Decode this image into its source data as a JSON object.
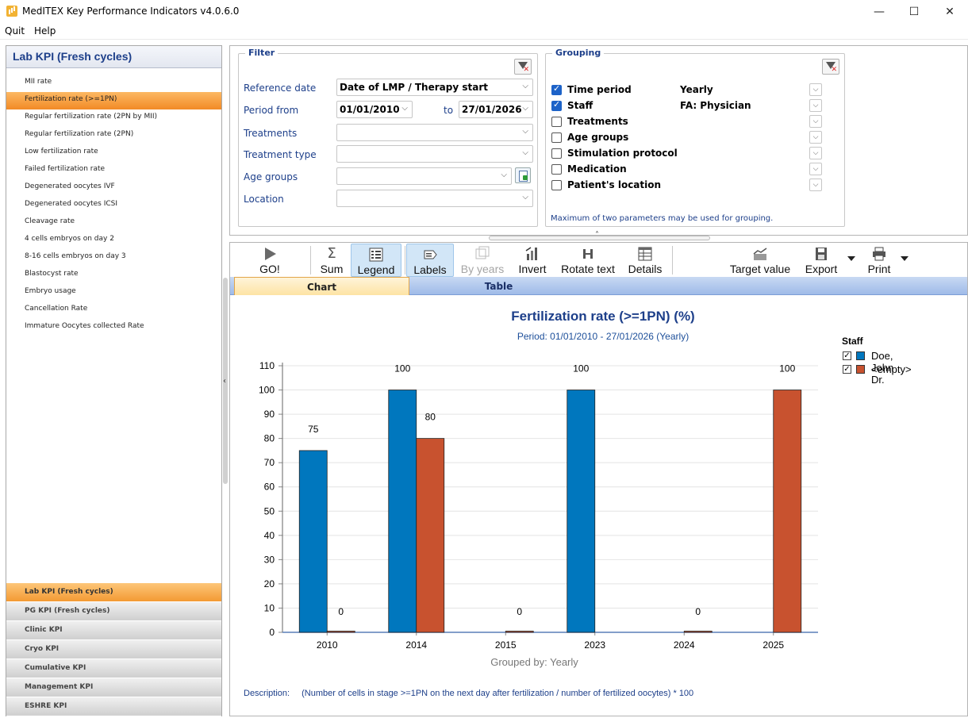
{
  "window": {
    "title": "MedITEX Key Performance Indicators v4.0.6.0",
    "minimize": "—",
    "maximize": "☐",
    "close": "✕"
  },
  "menu": {
    "items": [
      "Quit",
      "Help"
    ]
  },
  "left": {
    "header": "Lab KPI (Fresh cycles)",
    "kpis": [
      "MII rate",
      "Fertilization rate (>=1PN)",
      "Regular fertilization rate (2PN by MII)",
      "Regular fertilization rate (2PN)",
      "Low fertilization rate",
      "Failed fertilization rate",
      "Degenerated oocytes IVF",
      "Degenerated oocytes ICSI",
      "Cleavage rate",
      "4 cells embryos on day 2",
      "8-16 cells embryos on day 3",
      "Blastocyst rate",
      "Embryo usage",
      "Cancellation Rate",
      "Immature Oocytes collected Rate"
    ],
    "selected_kpi": "Fertilization rate (>=1PN)",
    "categories": [
      "Lab KPI (Fresh cycles)",
      "PG KPI (Fresh cycles)",
      "Clinic KPI",
      "Cryo KPI",
      "Cumulative KPI",
      "Management KPI",
      "ESHRE KPI"
    ],
    "active_category": "Lab KPI (Fresh cycles)"
  },
  "filter": {
    "title": "Filter",
    "reference_date_label": "Reference date",
    "reference_date_value": "Date of LMP / Therapy start",
    "period_from_label": "Period from",
    "period_from_value": "01/01/2010",
    "period_to_label": "to",
    "period_to_value": "27/01/2026",
    "treatments_label": "Treatments",
    "treatment_type_label": "Treatment type",
    "age_groups_label": "Age groups",
    "location_label": "Location",
    "empty": ""
  },
  "grouping": {
    "title": "Grouping",
    "items": [
      {
        "label": "Time period",
        "checked": true,
        "value": "Yearly"
      },
      {
        "label": "Staff",
        "checked": true,
        "value": "FA: Physician"
      },
      {
        "label": "Treatments",
        "checked": false,
        "value": ""
      },
      {
        "label": "Age groups",
        "checked": false,
        "value": ""
      },
      {
        "label": "Stimulation protocol",
        "checked": false,
        "value": ""
      },
      {
        "label": "Medication",
        "checked": false,
        "value": ""
      },
      {
        "label": "Patient's location",
        "checked": false,
        "value": ""
      }
    ],
    "note": "Maximum of two parameters may be used for grouping."
  },
  "toolbar": {
    "go": "GO!",
    "sum": "Sum",
    "legend": "Legend",
    "labels": "Labels",
    "by_years": "By years",
    "invert": "Invert",
    "rotate_text": "Rotate text",
    "details": "Details",
    "target_value": "Target value",
    "export": "Export",
    "print": "Print"
  },
  "tabs": {
    "chart": "Chart",
    "table": "Table",
    "active": "Chart"
  },
  "colors": {
    "series1": "#0077be",
    "series2": "#c8522f",
    "title": "#1d3f8a",
    "accent_orange": "#f28a26"
  },
  "chart_data": {
    "type": "bar",
    "title": "Fertilization rate (>=1PN) (%)",
    "subtitle": "Period: 01/01/2010 - 27/01/2026 (Yearly)",
    "xlabel": "Grouped by: Yearly",
    "ylabel": "",
    "categories": [
      "2010",
      "2014",
      "2015",
      "2023",
      "2024",
      "2025"
    ],
    "series": [
      {
        "name": "Doe, John Dr.",
        "values": [
          75,
          100,
          null,
          100,
          null,
          null
        ]
      },
      {
        "name": "<empty>",
        "values": [
          0,
          80,
          0,
          null,
          0,
          100
        ]
      }
    ],
    "ylim": [
      0,
      110
    ],
    "yticks": [
      "0",
      "10",
      "20",
      "30",
      "40",
      "50",
      "60",
      "70",
      "80",
      "90",
      "100",
      "110"
    ],
    "grid": true,
    "legend_title": "Staff",
    "legend_position": "right"
  },
  "description": {
    "label": "Description:",
    "text": "(Number of cells in stage >=1PN on the next day after fertilization / number of fertilized oocytes) * 100"
  }
}
